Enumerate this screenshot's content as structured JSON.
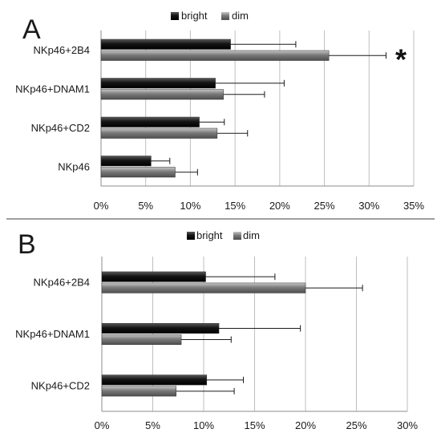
{
  "colors": {
    "bright": "#141414",
    "dim": "#7a7a7a",
    "grid": "#bfbfbf",
    "axis": "#8c8c8c",
    "divider": "#7f7f7f",
    "text": "#1a1a1a"
  },
  "chart_data": [
    {
      "type": "bar",
      "orientation": "horizontal",
      "panel_label": "A",
      "categories": [
        "NKp46+2B4",
        "NKp46+DNAM1",
        "NKp46+CD2",
        "NKp46"
      ],
      "series": [
        {
          "name": "bright",
          "values": [
            14.5,
            12.8,
            11.0,
            5.6
          ],
          "errors": [
            7.3,
            7.7,
            2.8,
            2.1
          ]
        },
        {
          "name": "dim",
          "values": [
            25.5,
            13.7,
            13.0,
            8.3
          ],
          "errors": [
            6.4,
            4.6,
            3.4,
            2.5
          ]
        }
      ],
      "xlim": [
        0,
        35
      ],
      "xticks": [
        "0%",
        "5%",
        "10%",
        "15%",
        "20%",
        "25%",
        "30%",
        "35%"
      ],
      "grid": true,
      "legend_position": "top",
      "annotations": [
        {
          "text": "*",
          "category": "NKp46+2B4"
        }
      ]
    },
    {
      "type": "bar",
      "orientation": "horizontal",
      "panel_label": "B",
      "categories": [
        "NKp46+2B4",
        "NKp46+DNAM1",
        "NKp46+CD2"
      ],
      "series": [
        {
          "name": "bright",
          "values": [
            10.2,
            11.5,
            10.3
          ],
          "errors": [
            6.8,
            8.0,
            3.6
          ]
        },
        {
          "name": "dim",
          "values": [
            20.0,
            7.8,
            7.3
          ],
          "errors": [
            5.6,
            4.9,
            5.7
          ]
        }
      ],
      "xlim": [
        0,
        30
      ],
      "xticks": [
        "0%",
        "5%",
        "10%",
        "15%",
        "20%",
        "25%",
        "30%"
      ],
      "grid": true,
      "legend_position": "top",
      "annotations": []
    }
  ]
}
